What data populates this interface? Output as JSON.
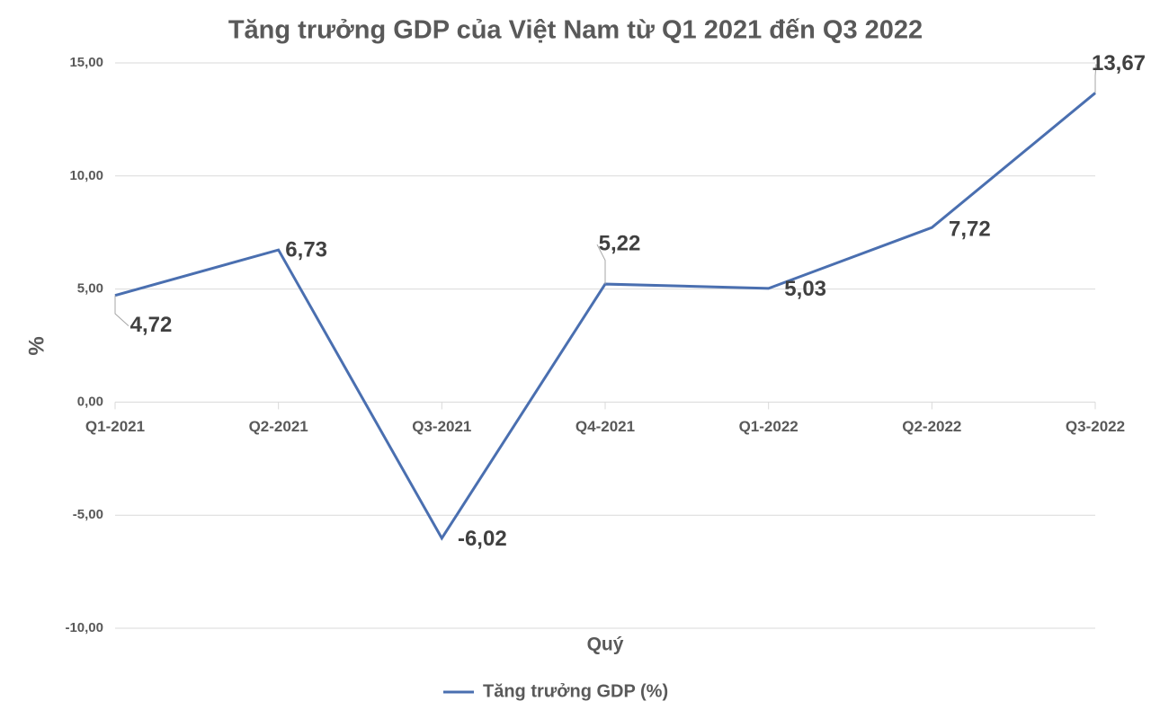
{
  "chart_data": {
    "type": "line",
    "title": "Tăng trưởng GDP của Việt Nam từ Q1 2021 đến Q3 2022",
    "x_label": "Quý",
    "y_label": "%",
    "categories": [
      "Q1-2021",
      "Q2-2021",
      "Q3-2021",
      "Q4-2021",
      "Q1-2022",
      "Q2-2022",
      "Q3-2022"
    ],
    "series": [
      {
        "name": "Tăng trưởng GDP (%)",
        "color": "#4a6fb0",
        "values": [
          4.72,
          6.73,
          -6.02,
          5.22,
          5.03,
          7.72,
          13.67
        ],
        "value_labels": [
          "4,72",
          "6,73",
          "-6,02",
          "5,22",
          "5,03",
          "7,72",
          "13,67"
        ]
      }
    ],
    "ylim": [
      -10,
      15
    ],
    "yticks": [
      {
        "value": -10,
        "label": "-10,00"
      },
      {
        "value": -5,
        "label": "-5,00"
      },
      {
        "value": 0,
        "label": "0,00"
      },
      {
        "value": 5,
        "label": "5,00"
      },
      {
        "value": 10,
        "label": "10,00"
      },
      {
        "value": 15,
        "label": "15,00"
      }
    ],
    "grid": true,
    "legend": "bottom"
  }
}
